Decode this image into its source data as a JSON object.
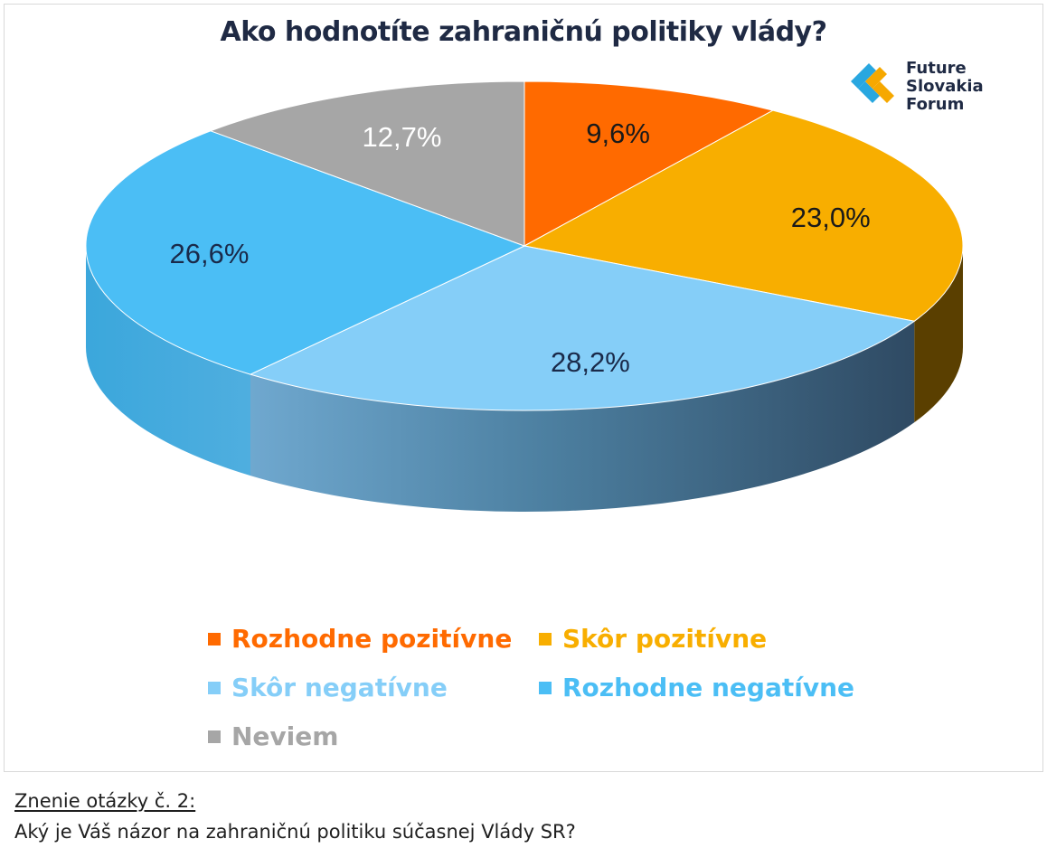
{
  "chart_data": {
    "type": "pie",
    "title": "Ako hodnotíte zahraničnú politiky vlády?",
    "slices": [
      {
        "label": "Rozhodne pozitívne",
        "value": 9.6,
        "display": "9,6%",
        "color": "#FF6A00",
        "label_color": "#1a1a1a"
      },
      {
        "label": "Skôr pozitívne",
        "value": 23.0,
        "display": "23,0%",
        "color": "#F8AE00",
        "label_color": "#1a1a1a"
      },
      {
        "label": "Skôr negatívne",
        "value": 28.2,
        "display": "28,2%",
        "color": "#85CEF8",
        "label_color": "#1a2a4a"
      },
      {
        "label": "Rozhodne negatívne",
        "value": 26.6,
        "display": "26,6%",
        "color": "#4BBEF5",
        "label_color": "#1a2a4a"
      },
      {
        "label": "Neviem",
        "value": 12.7,
        "display": "12,7%",
        "color": "#A6A6A6",
        "label_color": "#ffffff"
      }
    ],
    "legend_position": "bottom",
    "style": "3d"
  },
  "logo": {
    "lines": [
      "Future",
      "Slovakia",
      "Forum"
    ]
  },
  "footer": {
    "question_label": "Znenie otázky č. 2:",
    "question_text": "Aký je Váš názor na zahraničnú politiku súčasnej Vlády SR?"
  }
}
